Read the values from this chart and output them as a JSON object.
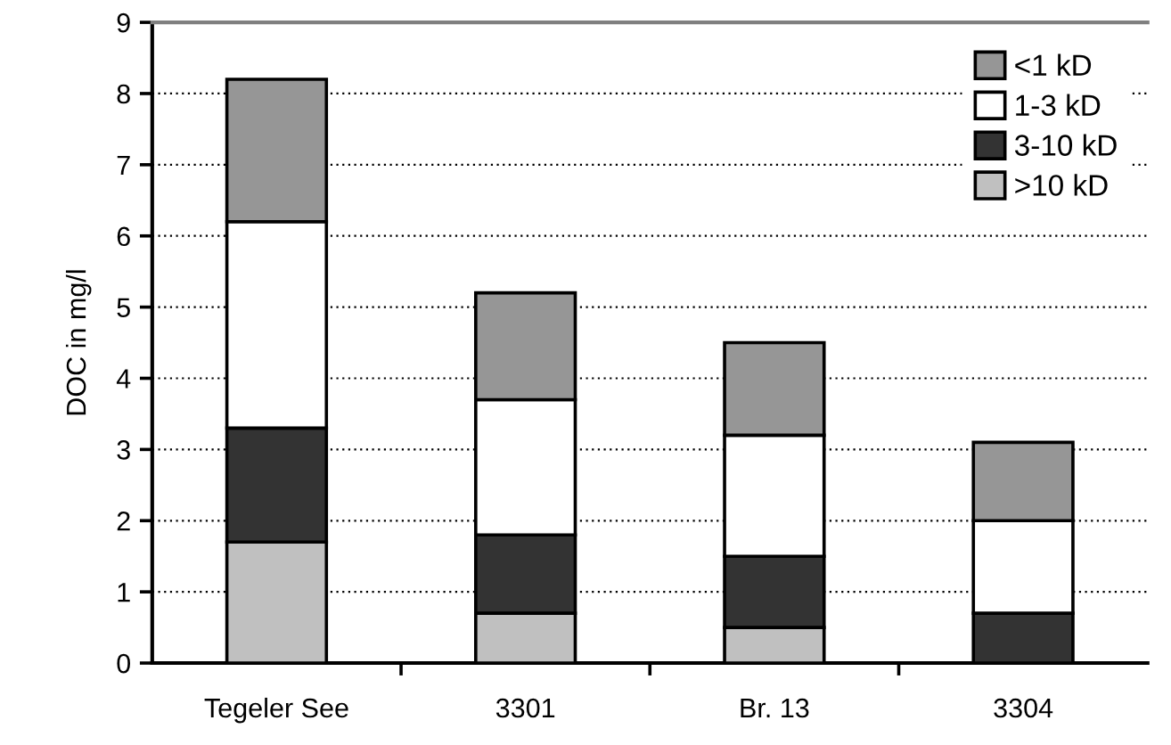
{
  "chart_data": {
    "type": "bar",
    "stacked": true,
    "ylabel": "DOC in mg/l",
    "categories": [
      "Tegeler See",
      "3301",
      "Br. 13",
      "3304"
    ],
    "series": [
      {
        "name": ">10 kD",
        "color": "#c0c0c0",
        "values": [
          1.7,
          0.7,
          0.5,
          0
        ]
      },
      {
        "name": "3-10 kD",
        "color": "#333333",
        "values": [
          1.6,
          1.1,
          1.0,
          0.7
        ]
      },
      {
        "name": "1-3 kD",
        "color": "#ffffff",
        "values": [
          2.9,
          1.9,
          1.7,
          1.3
        ]
      },
      {
        "name": "<1 kD",
        "color": "#969696",
        "values": [
          2.0,
          1.5,
          1.3,
          1.1
        ]
      }
    ],
    "ylim": [
      0,
      9
    ],
    "yticks": [
      0,
      1,
      2,
      3,
      4,
      5,
      6,
      7,
      8,
      9
    ],
    "grid": "y",
    "legend": "top right"
  }
}
